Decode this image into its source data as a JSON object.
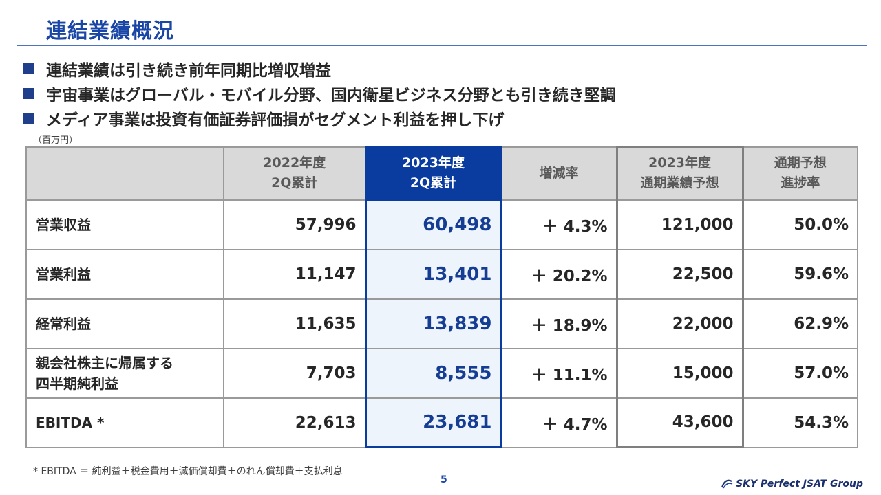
{
  "slide": {
    "title": "連結業績概況",
    "bullets": [
      "連結業績は引き続き前年同期比増収増益",
      "宇宙事業はグローバル・モバイル分野、国内衛星ビジネス分野とも引き続き堅調",
      "メディア事業は投資有価証券評価損がセグメント利益を押し下げ"
    ],
    "unit": "（百万円）",
    "footnote": "* EBITDA ＝ 純利益＋税金費用＋減価償却費＋のれん償却費＋支払利息",
    "page_number": "5",
    "logo_text": "SKY Perfect JSAT Group",
    "colors": {
      "accent": "#0a3b9e",
      "title": "#1a46a6",
      "highlight_bg": "#eef4fb"
    }
  },
  "table": {
    "headers": [
      {
        "line1": "",
        "line2": ""
      },
      {
        "line1": "2022年度",
        "line2": "2Q累計"
      },
      {
        "line1": "2023年度",
        "line2": "2Q累計"
      },
      {
        "line1": "増減率",
        "line2": ""
      },
      {
        "line1": "2023年度",
        "line2": "通期業績予想"
      },
      {
        "line1": "通期予想",
        "line2": "進捗率"
      }
    ],
    "rows": [
      {
        "label1": "営業収益",
        "label2": "",
        "prev": "57,996",
        "curr": "60,498",
        "change": "＋ 4.3%",
        "forecast": "121,000",
        "progress": "50.0%"
      },
      {
        "label1": "営業利益",
        "label2": "",
        "prev": "11,147",
        "curr": "13,401",
        "change": "＋ 20.2%",
        "forecast": "22,500",
        "progress": "59.6%"
      },
      {
        "label1": "経常利益",
        "label2": "",
        "prev": "11,635",
        "curr": "13,839",
        "change": "＋ 18.9%",
        "forecast": "22,000",
        "progress": "62.9%"
      },
      {
        "label1": "親会社株主に帰属する",
        "label2": "四半期純利益",
        "prev": "7,703",
        "curr": "8,555",
        "change": "＋ 11.1%",
        "forecast": "15,000",
        "progress": "57.0%"
      },
      {
        "label1": "EBITDA *",
        "label2": "",
        "prev": "22,613",
        "curr": "23,681",
        "change": "＋ 4.7%",
        "forecast": "43,600",
        "progress": "54.3%"
      }
    ]
  }
}
